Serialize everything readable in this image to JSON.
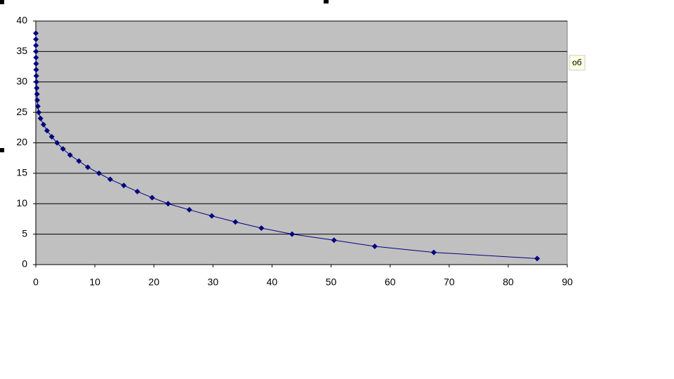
{
  "chart_data": {
    "type": "scatter",
    "x": [
      84.9,
      67.4,
      57.4,
      50.5,
      43.4,
      38.2,
      33.8,
      29.8,
      26.0,
      22.4,
      19.7,
      17.2,
      14.9,
      12.6,
      10.7,
      8.8,
      7.3,
      5.8,
      4.6,
      3.6,
      2.7,
      1.9,
      1.3,
      0.8,
      0.5,
      0.35,
      0.25,
      0.2,
      0.15,
      0.1,
      0.08,
      0.06,
      0.05,
      0.04,
      0.03,
      0.02,
      0.01,
      0.0
    ],
    "series": [
      {
        "color": "#000080",
        "values": [
          1,
          2,
          3,
          4,
          5,
          6,
          7,
          8,
          9,
          10,
          11,
          12,
          13,
          14,
          15,
          16,
          17,
          18,
          19,
          20,
          21,
          22,
          23,
          24,
          25,
          26,
          27,
          28,
          29,
          30,
          31,
          32,
          33,
          34,
          35,
          36,
          37,
          38
        ]
      }
    ],
    "xlim": [
      0,
      90
    ],
    "xticks": [
      0,
      10,
      20,
      30,
      40,
      50,
      60,
      70,
      80,
      90
    ],
    "ylim": [
      0,
      40
    ],
    "yticks": [
      0,
      5,
      10,
      15,
      20,
      25,
      30,
      35,
      40
    ],
    "grid": true,
    "plot_background": "#c0c0c0",
    "annotations": [
      "об"
    ]
  }
}
